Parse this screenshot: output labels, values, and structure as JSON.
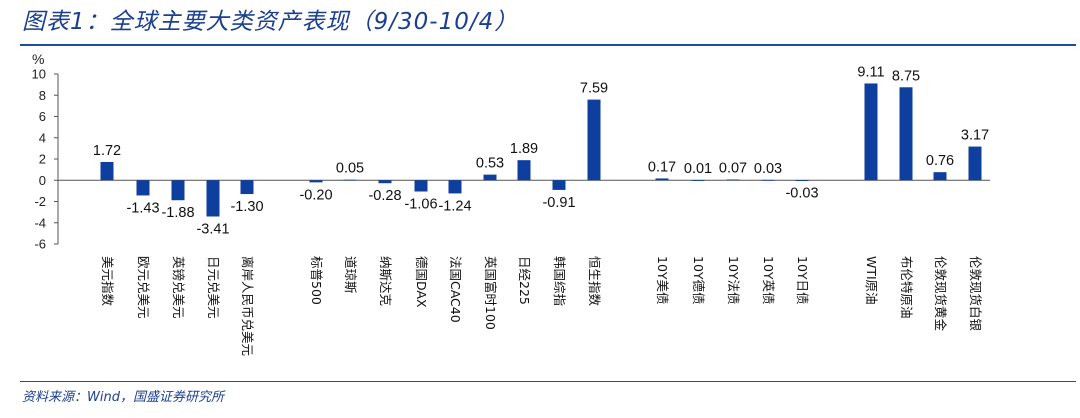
{
  "header": {
    "title": "图表1：全球主要大类资产表现（9/30-10/4）"
  },
  "footer": {
    "source": "资料来源：Wind，国盛证券研究所"
  },
  "colors": {
    "bar": "#0e3f9e",
    "rule": "#1d4ea0",
    "title": "#1b3f8f"
  },
  "chart_data": {
    "type": "bar",
    "unit_label": "%",
    "ylim": [
      -6,
      10
    ],
    "yticks": [
      -6,
      -4,
      -2,
      0,
      2,
      4,
      6,
      8,
      10
    ],
    "grid": false,
    "legend": "none",
    "categories": [
      "美元指数",
      "欧元兑美元",
      "英镑兑美元",
      "日元兑美元",
      "离岸人民币兑美元",
      "标普500",
      "道琼斯",
      "纳斯达克",
      "德国DAX",
      "法国CAC40",
      "英国富时100",
      "日经225",
      "韩国综指",
      "恒生指数",
      "10Y美债",
      "10Y德债",
      "10Y法债",
      "10Y英债",
      "10Y日债",
      "WTI原油",
      "布伦特原油",
      "伦敦现货黄金",
      "伦敦现货白银"
    ],
    "values": [
      1.72,
      -1.43,
      -1.88,
      -3.41,
      -1.3,
      -0.2,
      0.05,
      -0.28,
      -1.06,
      -1.24,
      0.53,
      1.89,
      -0.91,
      7.59,
      0.17,
      0.01,
      0.07,
      0.03,
      -0.03,
      9.11,
      8.75,
      0.76,
      3.17
    ],
    "value_labels": [
      "1.72",
      "-1.43",
      "-1.88",
      "-3.41",
      "-1.30",
      "-0.20",
      "0.05",
      "-0.28",
      "-1.06",
      "-1.24",
      "0.53",
      "1.89",
      "-0.91",
      "7.59",
      "0.17",
      "0.01",
      "0.07",
      "0.03",
      "-0.03",
      "9.11",
      "8.75",
      "0.76",
      "3.17"
    ]
  }
}
